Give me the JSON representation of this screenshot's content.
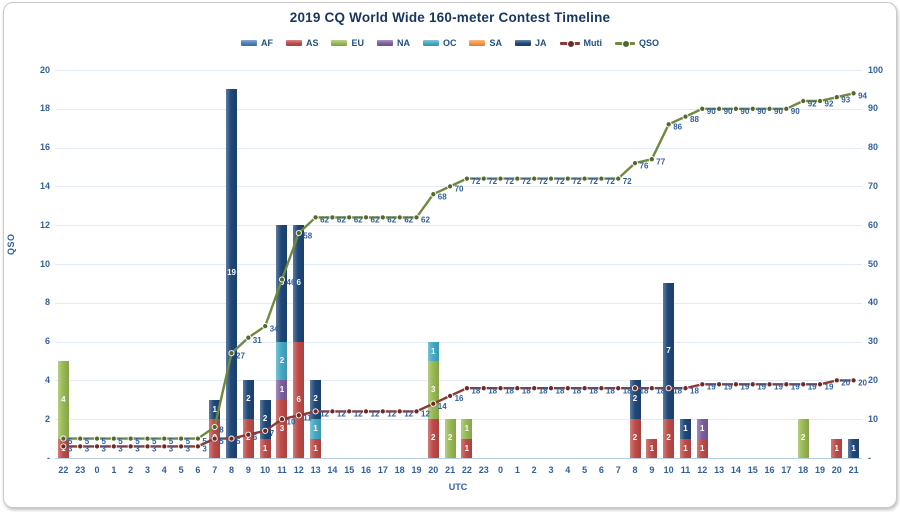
{
  "title": "2019 CQ World Wide 160-meter Contest Timeline",
  "axes": {
    "left_title": "QSO",
    "x_title": "UTC",
    "left_ticks": [
      "-",
      "2",
      "4",
      "6",
      "8",
      "10",
      "12",
      "14",
      "16",
      "18",
      "20"
    ],
    "right_ticks": [
      "-",
      "10",
      "20",
      "30",
      "40",
      "50",
      "60",
      "70",
      "80",
      "90",
      "100"
    ],
    "left_max": 20,
    "right_max": 100,
    "text_color": "#31609b",
    "gridline_color": "#e3ecf6"
  },
  "chart_data": {
    "type": "bar",
    "subtype": "stacked-bar-with-cumulative-lines",
    "categories": [
      "22",
      "23",
      "0",
      "1",
      "2",
      "3",
      "4",
      "5",
      "6",
      "7",
      "8",
      "9",
      "10",
      "11",
      "12",
      "13",
      "14",
      "15",
      "16",
      "17",
      "18",
      "19",
      "20",
      "21",
      "22",
      "23",
      "0",
      "1",
      "2",
      "3",
      "4",
      "5",
      "6",
      "7",
      "8",
      "9",
      "10",
      "11",
      "12",
      "13",
      "14",
      "15",
      "16",
      "17",
      "18",
      "19",
      "20",
      "21"
    ],
    "bar_axis": "left",
    "line_axis": "right",
    "series": [
      {
        "name": "AF",
        "type": "bar",
        "color": "#4a7ebb",
        "values": [
          0,
          0,
          0,
          0,
          0,
          0,
          0,
          0,
          0,
          0,
          0,
          0,
          0,
          0,
          0,
          0,
          0,
          0,
          0,
          0,
          0,
          0,
          0,
          0,
          0,
          0,
          0,
          0,
          0,
          0,
          0,
          0,
          0,
          0,
          0,
          0,
          0,
          0,
          0,
          0,
          0,
          0,
          0,
          0,
          0,
          0,
          0,
          0
        ]
      },
      {
        "name": "AS",
        "type": "bar",
        "color": "#be4b48",
        "values": [
          1,
          0,
          0,
          0,
          0,
          0,
          0,
          0,
          0,
          2,
          0,
          2,
          1,
          3,
          6,
          1,
          0,
          0,
          0,
          0,
          0,
          0,
          2,
          0,
          1,
          0,
          0,
          0,
          0,
          0,
          0,
          0,
          0,
          0,
          2,
          1,
          2,
          1,
          1,
          0,
          0,
          0,
          0,
          0,
          0,
          0,
          1,
          0
        ]
      },
      {
        "name": "EU",
        "type": "bar",
        "color": "#98b954",
        "values": [
          4,
          0,
          0,
          0,
          0,
          0,
          0,
          0,
          0,
          0,
          0,
          0,
          0,
          0,
          0,
          0,
          0,
          0,
          0,
          0,
          0,
          0,
          3,
          2,
          1,
          0,
          0,
          0,
          0,
          0,
          0,
          0,
          0,
          0,
          0,
          0,
          0,
          0,
          0,
          0,
          0,
          0,
          0,
          0,
          2,
          0,
          0,
          0
        ]
      },
      {
        "name": "NA",
        "type": "bar",
        "color": "#7d60a0",
        "values": [
          0,
          0,
          0,
          0,
          0,
          0,
          0,
          0,
          0,
          0,
          0,
          0,
          0,
          1,
          0,
          0,
          0,
          0,
          0,
          0,
          0,
          0,
          0,
          0,
          0,
          0,
          0,
          0,
          0,
          0,
          0,
          0,
          0,
          0,
          0,
          0,
          0,
          0,
          1,
          0,
          0,
          0,
          0,
          0,
          0,
          0,
          0,
          0
        ]
      },
      {
        "name": "OC",
        "type": "bar",
        "color": "#45aac5",
        "values": [
          0,
          0,
          0,
          0,
          0,
          0,
          0,
          0,
          0,
          0,
          0,
          0,
          0,
          2,
          0,
          1,
          0,
          0,
          0,
          0,
          0,
          0,
          1,
          0,
          0,
          0,
          0,
          0,
          0,
          0,
          0,
          0,
          0,
          0,
          0,
          0,
          0,
          0,
          0,
          0,
          0,
          0,
          0,
          0,
          0,
          0,
          0,
          0
        ]
      },
      {
        "name": "SA",
        "type": "bar",
        "color": "#f79646",
        "values": [
          0,
          0,
          0,
          0,
          0,
          0,
          0,
          0,
          0,
          0,
          0,
          0,
          0,
          0,
          0,
          0,
          0,
          0,
          0,
          0,
          0,
          0,
          0,
          0,
          0,
          0,
          0,
          0,
          0,
          0,
          0,
          0,
          0,
          0,
          0,
          0,
          0,
          0,
          0,
          0,
          0,
          0,
          0,
          0,
          0,
          0,
          0,
          0
        ]
      },
      {
        "name": "JA",
        "type": "bar",
        "color": "#1f4879",
        "values": [
          0,
          0,
          0,
          0,
          0,
          0,
          0,
          0,
          0,
          1,
          19,
          2,
          2,
          6,
          6,
          2,
          0,
          0,
          0,
          0,
          0,
          0,
          0,
          0,
          0,
          0,
          0,
          0,
          0,
          0,
          0,
          0,
          0,
          0,
          2,
          0,
          7,
          1,
          0,
          0,
          0,
          0,
          0,
          0,
          0,
          0,
          0,
          1
        ]
      },
      {
        "name": "Muti",
        "type": "line",
        "color": "#8b3a37",
        "values": [
          3,
          3,
          3,
          3,
          3,
          3,
          3,
          3,
          3,
          5,
          5,
          6,
          7,
          10,
          11,
          12,
          12,
          12,
          12,
          12,
          12,
          12,
          14,
          16,
          18,
          18,
          18,
          18,
          18,
          18,
          18,
          18,
          18,
          18,
          18,
          18,
          18,
          18,
          19,
          19,
          19,
          19,
          19,
          19,
          19,
          19,
          20,
          20
        ]
      },
      {
        "name": "QSO",
        "type": "line",
        "color": "#6f8a3d",
        "values": [
          5,
          5,
          5,
          5,
          5,
          5,
          5,
          5,
          5,
          8,
          27,
          31,
          34,
          46,
          58,
          62,
          62,
          62,
          62,
          62,
          62,
          62,
          68,
          70,
          72,
          72,
          72,
          72,
          72,
          72,
          72,
          72,
          72,
          72,
          76,
          77,
          86,
          88,
          90,
          90,
          90,
          90,
          90,
          90,
          92,
          92,
          93,
          94
        ]
      }
    ]
  }
}
